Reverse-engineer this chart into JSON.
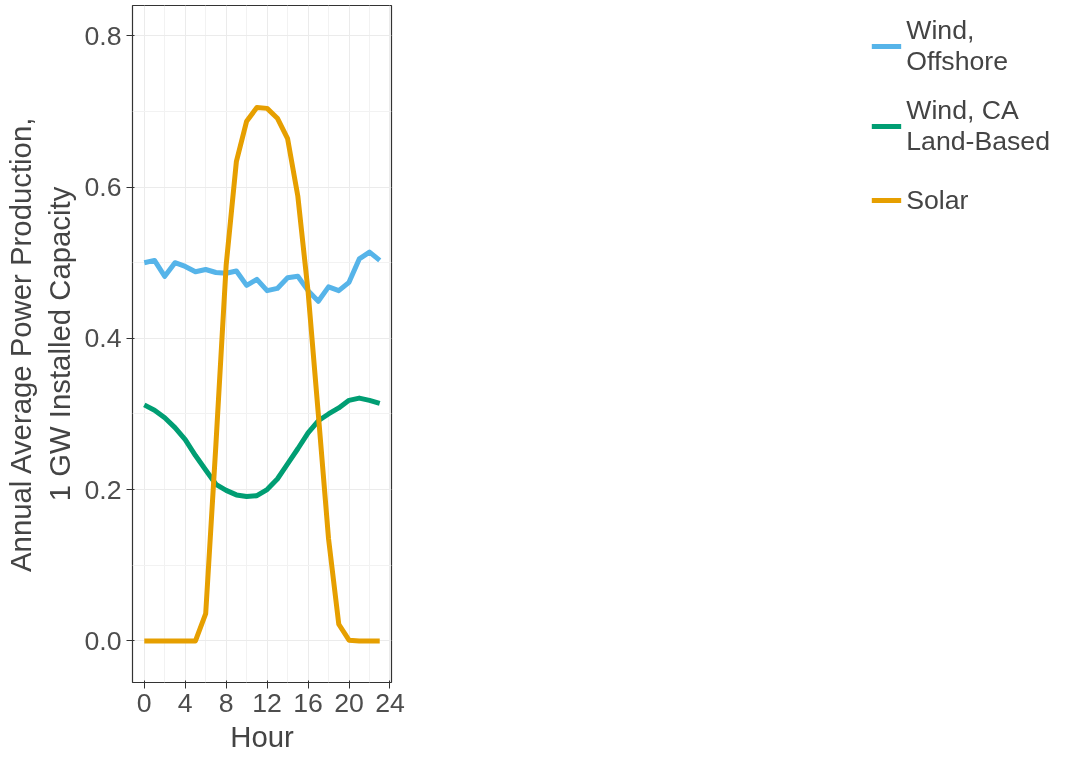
{
  "chart_data": {
    "type": "line",
    "xlabel": "Hour",
    "ylabel": "Annual Average Power Production,\n1 GW Installed Capacity",
    "x": [
      0,
      1,
      2,
      3,
      4,
      5,
      6,
      7,
      8,
      9,
      10,
      11,
      12,
      13,
      14,
      15,
      16,
      17,
      18,
      19,
      20,
      21,
      22,
      23
    ],
    "series": [
      {
        "name": "Wind,\nOffshore",
        "color": "#56b4e9",
        "values": [
          0.5,
          0.503,
          0.482,
          0.5,
          0.495,
          0.488,
          0.491,
          0.487,
          0.486,
          0.489,
          0.47,
          0.478,
          0.463,
          0.466,
          0.48,
          0.482,
          0.463,
          0.449,
          0.468,
          0.463,
          0.474,
          0.505,
          0.514,
          0.503
        ]
      },
      {
        "name": "Wind, CA\nLand-Based",
        "color": "#009e73",
        "values": [
          0.312,
          0.305,
          0.295,
          0.282,
          0.266,
          0.245,
          0.226,
          0.207,
          0.199,
          0.193,
          0.191,
          0.192,
          0.2,
          0.214,
          0.234,
          0.254,
          0.275,
          0.291,
          0.3,
          0.308,
          0.318,
          0.321,
          0.318,
          0.314
        ]
      },
      {
        "name": "Solar",
        "color": "#e69f00",
        "values": [
          0,
          0,
          0,
          0,
          0,
          0,
          0.036,
          0.26,
          0.497,
          0.634,
          0.687,
          0.705,
          0.704,
          0.691,
          0.664,
          0.588,
          0.462,
          0.3,
          0.135,
          0.022,
          0.001,
          0,
          0,
          0
        ]
      }
    ],
    "xlim": [
      -1.15,
      24.15
    ],
    "xticks": [
      0,
      4,
      8,
      12,
      16,
      20,
      24
    ],
    "ylim": [
      -0.055,
      0.84
    ],
    "yticks": [
      {
        "value": 0,
        "label": "0.0"
      },
      {
        "value": 0.2,
        "label": "0.2"
      },
      {
        "value": 0.4,
        "label": "0.4"
      },
      {
        "value": 0.6,
        "label": "0.6"
      },
      {
        "value": 0.8,
        "label": "0.8"
      }
    ],
    "grid": true,
    "legend": "right",
    "line_style": "solid",
    "marker": "none"
  }
}
